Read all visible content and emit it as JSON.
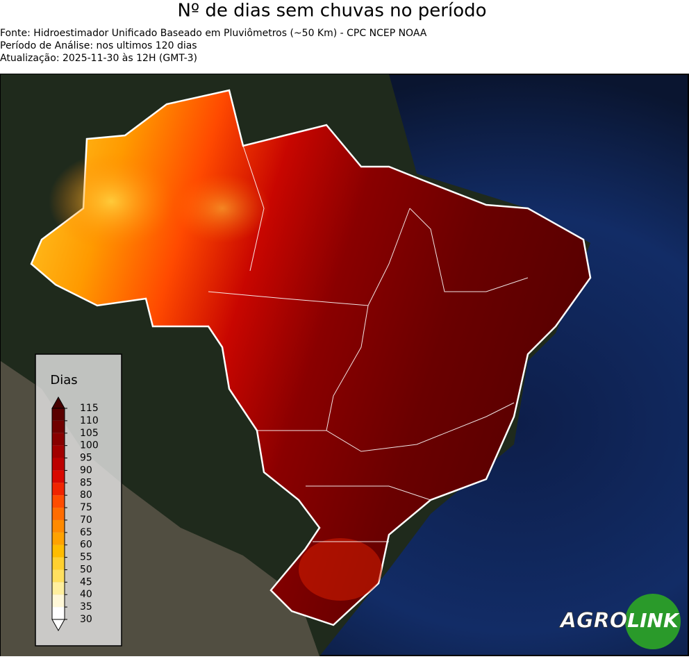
{
  "title": "Nº de dias sem chuvas no período",
  "subtitle_lines": [
    "Fonte: Hidroestimador Unificado Baseado em Pluviômetros (~50 Km) - CPC NCEP NOAA",
    "Período de Análise: nos ultimos 120 dias",
    "Atualização: 2025-11-30 às 12H (GMT-3)"
  ],
  "colorbar": {
    "label": "Dias",
    "ticks": [
      30,
      35,
      40,
      45,
      50,
      55,
      60,
      65,
      70,
      75,
      80,
      85,
      90,
      95,
      100,
      105,
      110,
      115
    ],
    "colors": [
      "#ffffff",
      "#fff8d8",
      "#ffef9e",
      "#ffe060",
      "#ffd030",
      "#ffbc00",
      "#ffa200",
      "#ff8a00",
      "#ff6c00",
      "#ff4c00",
      "#f02400",
      "#d80800",
      "#bc0000",
      "#a20000",
      "#880000",
      "#700000",
      "#5a0000"
    ],
    "extend_colors": [
      "#ffffff",
      "#460000"
    ]
  },
  "logo": {
    "left": "AGRO",
    "right": "LINK"
  }
}
